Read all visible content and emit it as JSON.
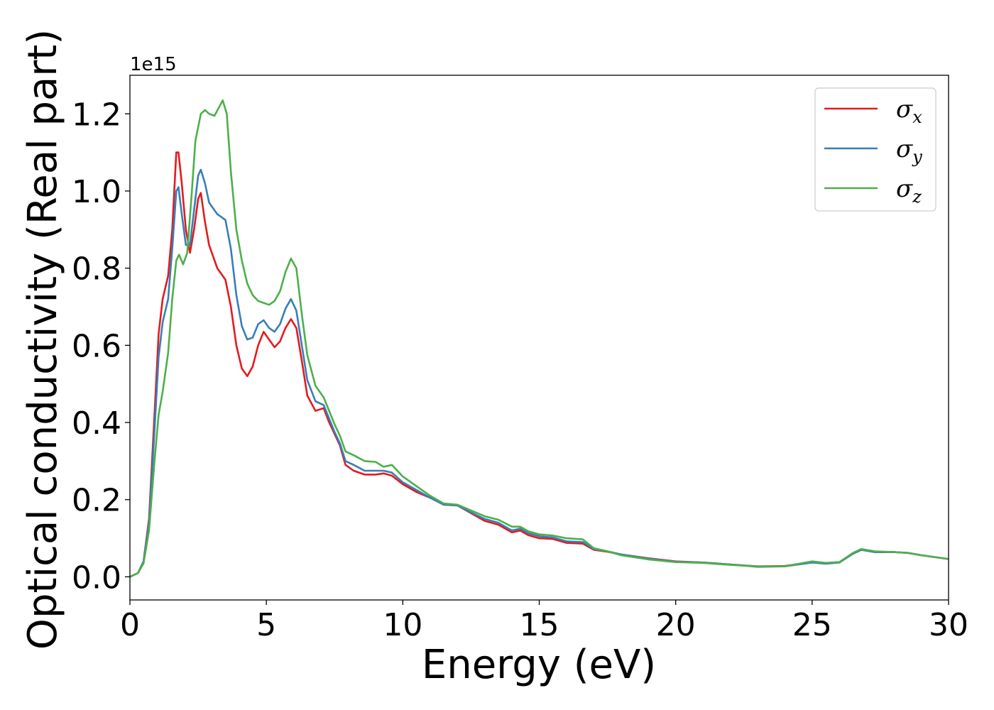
{
  "chart_data": {
    "type": "line",
    "xlabel": "Energy (eV)",
    "ylabel": "Optical conductivity (Real part)",
    "y_offset_label": "1e15",
    "xlim": [
      0,
      30
    ],
    "ylim": [
      -0.06,
      1.3
    ],
    "x_ticks": [
      0,
      5,
      10,
      15,
      20,
      25,
      30
    ],
    "x_tick_labels": [
      "0",
      "5",
      "10",
      "15",
      "20",
      "25",
      "30"
    ],
    "y_ticks": [
      0.0,
      0.2,
      0.4,
      0.6,
      0.8,
      1.0,
      1.2
    ],
    "y_tick_labels": [
      "0.0",
      "0.2",
      "0.4",
      "0.6",
      "0.8",
      "1.0",
      "1.2"
    ],
    "grid": false,
    "legend_position": "top-right",
    "colors": {
      "sigma_x": "#e41a1c",
      "sigma_y": "#377eb8",
      "sigma_z": "#4daf4a"
    },
    "series": [
      {
        "name": "σx",
        "symbol": "σ",
        "subscript": "x",
        "color": "#e41a1c",
        "points": [
          [
            0,
            0
          ],
          [
            0.3,
            0.01
          ],
          [
            0.5,
            0.04
          ],
          [
            0.7,
            0.15
          ],
          [
            0.9,
            0.42
          ],
          [
            1.05,
            0.63
          ],
          [
            1.2,
            0.72
          ],
          [
            1.4,
            0.78
          ],
          [
            1.55,
            0.9
          ],
          [
            1.7,
            1.1
          ],
          [
            1.78,
            1.1
          ],
          [
            1.9,
            1.02
          ],
          [
            2.05,
            0.9
          ],
          [
            2.2,
            0.84
          ],
          [
            2.35,
            0.9
          ],
          [
            2.5,
            0.98
          ],
          [
            2.6,
            0.995
          ],
          [
            2.75,
            0.92
          ],
          [
            2.9,
            0.86
          ],
          [
            3.2,
            0.8
          ],
          [
            3.5,
            0.77
          ],
          [
            3.7,
            0.7
          ],
          [
            3.9,
            0.6
          ],
          [
            4.1,
            0.54
          ],
          [
            4.3,
            0.52
          ],
          [
            4.5,
            0.545
          ],
          [
            4.7,
            0.6
          ],
          [
            4.9,
            0.635
          ],
          [
            5.1,
            0.615
          ],
          [
            5.3,
            0.595
          ],
          [
            5.5,
            0.61
          ],
          [
            5.7,
            0.645
          ],
          [
            5.9,
            0.668
          ],
          [
            6.1,
            0.645
          ],
          [
            6.3,
            0.56
          ],
          [
            6.5,
            0.47
          ],
          [
            6.8,
            0.43
          ],
          [
            7.1,
            0.437
          ],
          [
            7.3,
            0.4
          ],
          [
            7.5,
            0.37
          ],
          [
            7.7,
            0.34
          ],
          [
            7.9,
            0.29
          ],
          [
            8.2,
            0.275
          ],
          [
            8.6,
            0.265
          ],
          [
            9.0,
            0.265
          ],
          [
            9.3,
            0.268
          ],
          [
            9.6,
            0.262
          ],
          [
            10.0,
            0.24
          ],
          [
            10.5,
            0.22
          ],
          [
            11.0,
            0.205
          ],
          [
            11.5,
            0.187
          ],
          [
            12.0,
            0.185
          ],
          [
            12.5,
            0.165
          ],
          [
            13.0,
            0.145
          ],
          [
            13.5,
            0.135
          ],
          [
            14.0,
            0.115
          ],
          [
            14.3,
            0.12
          ],
          [
            14.6,
            0.108
          ],
          [
            15.0,
            0.1
          ],
          [
            15.5,
            0.098
          ],
          [
            16.0,
            0.088
          ],
          [
            16.6,
            0.086
          ],
          [
            17.0,
            0.07
          ],
          [
            17.5,
            0.065
          ],
          [
            18.0,
            0.058
          ],
          [
            19.0,
            0.048
          ],
          [
            20.0,
            0.04
          ],
          [
            21.0,
            0.037
          ],
          [
            22.0,
            0.032
          ],
          [
            23.0,
            0.027
          ],
          [
            24.0,
            0.028
          ],
          [
            25.0,
            0.038
          ],
          [
            25.5,
            0.035
          ],
          [
            26.0,
            0.038
          ],
          [
            26.5,
            0.06
          ],
          [
            26.8,
            0.07
          ],
          [
            27.3,
            0.064
          ],
          [
            28.0,
            0.064
          ],
          [
            28.5,
            0.062
          ],
          [
            29.0,
            0.056
          ],
          [
            30.0,
            0.046
          ]
        ]
      },
      {
        "name": "σy",
        "symbol": "σ",
        "subscript": "y",
        "color": "#377eb8",
        "points": [
          [
            0,
            0
          ],
          [
            0.3,
            0.01
          ],
          [
            0.5,
            0.04
          ],
          [
            0.7,
            0.14
          ],
          [
            0.9,
            0.38
          ],
          [
            1.05,
            0.57
          ],
          [
            1.2,
            0.66
          ],
          [
            1.4,
            0.72
          ],
          [
            1.55,
            0.85
          ],
          [
            1.7,
            1.0
          ],
          [
            1.78,
            1.01
          ],
          [
            1.9,
            0.94
          ],
          [
            2.05,
            0.86
          ],
          [
            2.2,
            0.86
          ],
          [
            2.35,
            0.95
          ],
          [
            2.5,
            1.04
          ],
          [
            2.6,
            1.055
          ],
          [
            2.75,
            1.02
          ],
          [
            2.9,
            0.97
          ],
          [
            3.2,
            0.94
          ],
          [
            3.5,
            0.925
          ],
          [
            3.7,
            0.85
          ],
          [
            3.9,
            0.73
          ],
          [
            4.1,
            0.65
          ],
          [
            4.3,
            0.615
          ],
          [
            4.5,
            0.62
          ],
          [
            4.7,
            0.655
          ],
          [
            4.9,
            0.665
          ],
          [
            5.1,
            0.645
          ],
          [
            5.3,
            0.635
          ],
          [
            5.5,
            0.655
          ],
          [
            5.7,
            0.695
          ],
          [
            5.9,
            0.72
          ],
          [
            6.1,
            0.69
          ],
          [
            6.3,
            0.6
          ],
          [
            6.5,
            0.51
          ],
          [
            6.8,
            0.455
          ],
          [
            7.1,
            0.445
          ],
          [
            7.3,
            0.41
          ],
          [
            7.5,
            0.375
          ],
          [
            7.7,
            0.345
          ],
          [
            7.9,
            0.3
          ],
          [
            8.2,
            0.29
          ],
          [
            8.6,
            0.275
          ],
          [
            9.0,
            0.275
          ],
          [
            9.3,
            0.275
          ],
          [
            9.6,
            0.27
          ],
          [
            10.0,
            0.245
          ],
          [
            10.5,
            0.225
          ],
          [
            11.0,
            0.205
          ],
          [
            11.5,
            0.187
          ],
          [
            12.0,
            0.185
          ],
          [
            12.5,
            0.167
          ],
          [
            13.0,
            0.15
          ],
          [
            13.5,
            0.14
          ],
          [
            14.0,
            0.12
          ],
          [
            14.3,
            0.125
          ],
          [
            14.6,
            0.113
          ],
          [
            15.0,
            0.105
          ],
          [
            15.5,
            0.102
          ],
          [
            16.0,
            0.092
          ],
          [
            16.6,
            0.09
          ],
          [
            17.0,
            0.072
          ],
          [
            17.5,
            0.066
          ],
          [
            18.0,
            0.058
          ],
          [
            19.0,
            0.047
          ],
          [
            20.0,
            0.039
          ],
          [
            21.0,
            0.037
          ],
          [
            22.0,
            0.032
          ],
          [
            23.0,
            0.026
          ],
          [
            24.0,
            0.027
          ],
          [
            25.0,
            0.037
          ],
          [
            25.5,
            0.034
          ],
          [
            26.0,
            0.037
          ],
          [
            26.5,
            0.06
          ],
          [
            26.8,
            0.07
          ],
          [
            27.3,
            0.064
          ],
          [
            28.0,
            0.064
          ],
          [
            28.5,
            0.062
          ],
          [
            29.0,
            0.056
          ],
          [
            30.0,
            0.046
          ]
        ]
      },
      {
        "name": "σz",
        "symbol": "σ",
        "subscript": "z",
        "color": "#4daf4a",
        "points": [
          [
            0,
            0
          ],
          [
            0.3,
            0.01
          ],
          [
            0.5,
            0.035
          ],
          [
            0.7,
            0.12
          ],
          [
            0.9,
            0.3
          ],
          [
            1.05,
            0.42
          ],
          [
            1.2,
            0.48
          ],
          [
            1.4,
            0.58
          ],
          [
            1.55,
            0.72
          ],
          [
            1.7,
            0.82
          ],
          [
            1.8,
            0.835
          ],
          [
            1.95,
            0.81
          ],
          [
            2.1,
            0.84
          ],
          [
            2.25,
            0.98
          ],
          [
            2.4,
            1.13
          ],
          [
            2.6,
            1.2
          ],
          [
            2.75,
            1.21
          ],
          [
            2.9,
            1.2
          ],
          [
            3.1,
            1.195
          ],
          [
            3.25,
            1.215
          ],
          [
            3.4,
            1.235
          ],
          [
            3.55,
            1.2
          ],
          [
            3.7,
            1.05
          ],
          [
            3.9,
            0.9
          ],
          [
            4.1,
            0.82
          ],
          [
            4.3,
            0.76
          ],
          [
            4.5,
            0.73
          ],
          [
            4.7,
            0.715
          ],
          [
            4.9,
            0.71
          ],
          [
            5.1,
            0.705
          ],
          [
            5.3,
            0.715
          ],
          [
            5.5,
            0.74
          ],
          [
            5.7,
            0.79
          ],
          [
            5.9,
            0.825
          ],
          [
            6.1,
            0.8
          ],
          [
            6.3,
            0.68
          ],
          [
            6.5,
            0.575
          ],
          [
            6.8,
            0.495
          ],
          [
            7.1,
            0.465
          ],
          [
            7.3,
            0.43
          ],
          [
            7.5,
            0.395
          ],
          [
            7.7,
            0.365
          ],
          [
            7.9,
            0.325
          ],
          [
            8.2,
            0.315
          ],
          [
            8.6,
            0.3
          ],
          [
            9.0,
            0.298
          ],
          [
            9.3,
            0.285
          ],
          [
            9.6,
            0.29
          ],
          [
            10.0,
            0.26
          ],
          [
            10.5,
            0.235
          ],
          [
            11.0,
            0.21
          ],
          [
            11.5,
            0.19
          ],
          [
            12.0,
            0.187
          ],
          [
            12.5,
            0.172
          ],
          [
            13.0,
            0.157
          ],
          [
            13.5,
            0.148
          ],
          [
            14.0,
            0.13
          ],
          [
            14.3,
            0.13
          ],
          [
            14.6,
            0.118
          ],
          [
            15.0,
            0.11
          ],
          [
            15.5,
            0.107
          ],
          [
            16.0,
            0.1
          ],
          [
            16.6,
            0.097
          ],
          [
            17.0,
            0.074
          ],
          [
            17.5,
            0.066
          ],
          [
            18.0,
            0.056
          ],
          [
            19.0,
            0.045
          ],
          [
            20.0,
            0.038
          ],
          [
            21.0,
            0.036
          ],
          [
            22.0,
            0.031
          ],
          [
            23.0,
            0.027
          ],
          [
            24.0,
            0.027
          ],
          [
            25.0,
            0.04
          ],
          [
            25.5,
            0.036
          ],
          [
            26.0,
            0.038
          ],
          [
            26.5,
            0.062
          ],
          [
            26.8,
            0.072
          ],
          [
            27.3,
            0.066
          ],
          [
            28.0,
            0.064
          ],
          [
            28.5,
            0.062
          ],
          [
            29.0,
            0.056
          ],
          [
            30.0,
            0.046
          ]
        ]
      }
    ]
  }
}
